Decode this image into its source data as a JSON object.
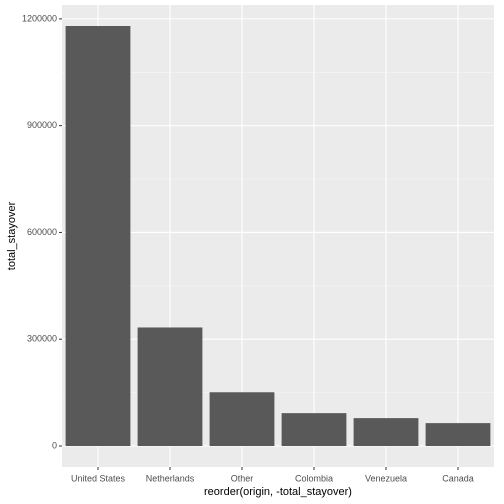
{
  "chart_data": {
    "type": "bar",
    "x_label": "reorder(origin, -total_stayover)",
    "y_label": "total_stayover",
    "categories": [
      "United States",
      "Netherlands",
      "Other",
      "Colombia",
      "Venezuela",
      "Canada"
    ],
    "values": [
      1180000,
      333000,
      151000,
      92300,
      78300,
      64300
    ],
    "color": "#595959",
    "ylim": [
      -59000,
      1239000
    ],
    "yticks": [
      0,
      300000,
      600000,
      900000,
      1200000
    ],
    "grid": true
  }
}
